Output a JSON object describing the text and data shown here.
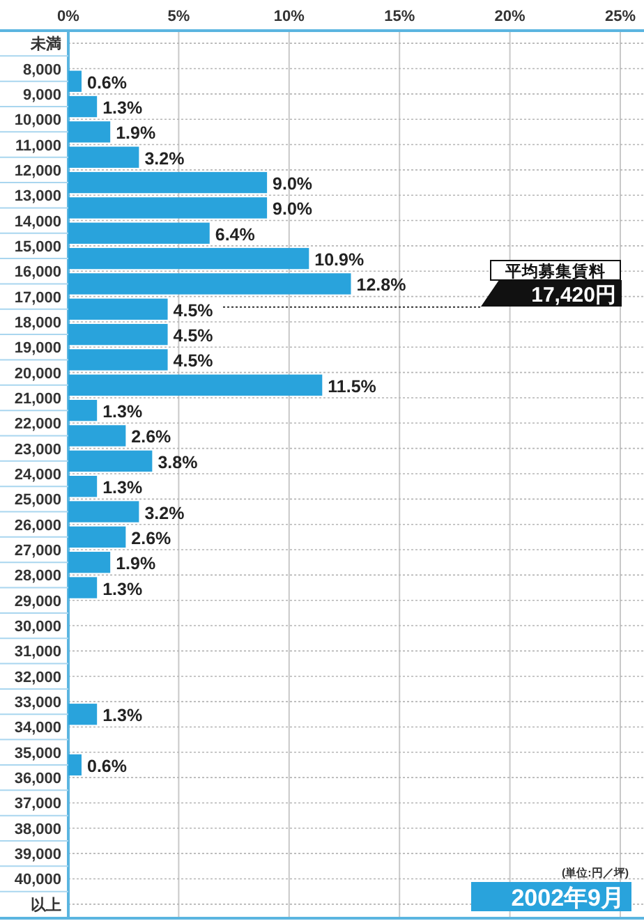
{
  "chart_data": {
    "type": "bar",
    "orientation": "horizontal",
    "categories": [
      "未満",
      "8,000",
      "9,000",
      "10,000",
      "11,000",
      "12,000",
      "13,000",
      "14,000",
      "15,000",
      "16,000",
      "17,000",
      "18,000",
      "19,000",
      "20,000",
      "21,000",
      "22,000",
      "23,000",
      "24,000",
      "25,000",
      "26,000",
      "27,000",
      "28,000",
      "29,000",
      "30,000",
      "31,000",
      "32,000",
      "33,000",
      "34,000",
      "35,000",
      "36,000",
      "37,000",
      "38,000",
      "39,000",
      "40,000",
      "以上"
    ],
    "values": [
      null,
      0.6,
      1.3,
      1.9,
      3.2,
      9.0,
      9.0,
      6.4,
      10.9,
      12.8,
      4.5,
      4.5,
      4.5,
      11.5,
      1.3,
      2.6,
      3.8,
      1.3,
      3.2,
      2.6,
      1.9,
      1.3,
      null,
      null,
      null,
      null,
      1.3,
      null,
      0.6,
      null,
      null,
      null,
      null,
      null,
      null
    ],
    "value_labels": [
      null,
      "0.6%",
      "1.3%",
      "1.9%",
      "3.2%",
      "9.0%",
      "9.0%",
      "6.4%",
      "10.9%",
      "12.8%",
      "4.5%",
      "4.5%",
      "4.5%",
      "11.5%",
      "1.3%",
      "2.6%",
      "3.8%",
      "1.3%",
      "3.2%",
      "2.6%",
      "1.9%",
      "1.3%",
      null,
      null,
      null,
      null,
      "1.3%",
      null,
      "0.6%",
      null,
      null,
      null,
      null,
      null,
      null
    ],
    "color": "#29a3dc",
    "xlim": [
      0,
      25
    ],
    "xticks": [
      {
        "value": 0,
        "label": "0%"
      },
      {
        "value": 5,
        "label": "5%"
      },
      {
        "value": 10,
        "label": "10%"
      },
      {
        "value": 15,
        "label": "15%"
      },
      {
        "value": 20,
        "label": "20%"
      },
      {
        "value": 25,
        "label": "25%"
      }
    ],
    "grid": true,
    "annotations": [
      "平均募集賃料",
      "17,420円",
      "(単位:円／坪)",
      "2002年9月"
    ]
  }
}
